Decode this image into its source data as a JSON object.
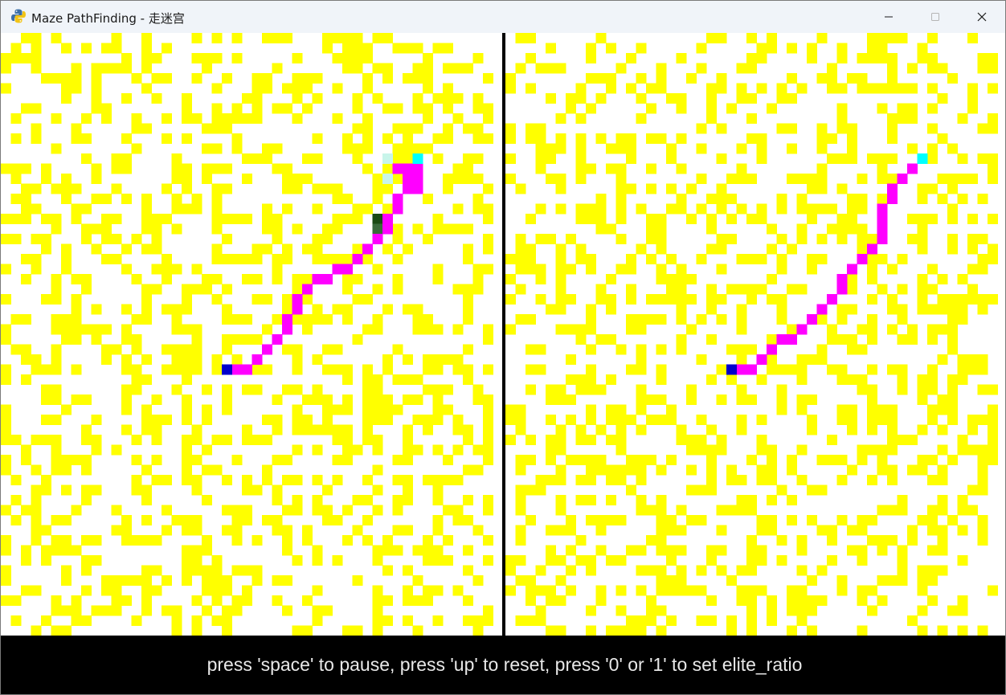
{
  "window": {
    "title": "Maze PathFinding - 走迷宫",
    "app_icon": "python-snake-icon",
    "controls": [
      "minimize-icon",
      "maximize-icon",
      "close-icon"
    ]
  },
  "colors": {
    "background": "#ffffff",
    "wall": "#ffff00",
    "path": "#ff00ff",
    "start": "#0000cc",
    "goal": "#00ffff",
    "explored_light": "#c8f5ea",
    "explored_dark_1": "#1a4a14",
    "explored_dark_2": "#3a6a3c",
    "divider": "#000000",
    "status_bg": "#000000",
    "status_text": "#e8e8e8"
  },
  "maze": {
    "grid_columns_per_panel": 49,
    "grid_rows": 60,
    "left_panel": {
      "start_cell": [
        22,
        33
      ],
      "goal_cell": [
        41,
        12
      ],
      "path_cells": [
        [
          23,
          33
        ],
        [
          24,
          33
        ],
        [
          25,
          32
        ],
        [
          26,
          31
        ],
        [
          27,
          30
        ],
        [
          28,
          29
        ],
        [
          28,
          28
        ],
        [
          29,
          27
        ],
        [
          29,
          26
        ],
        [
          30,
          25
        ],
        [
          31,
          24
        ],
        [
          32,
          24
        ],
        [
          33,
          23
        ],
        [
          34,
          23
        ],
        [
          35,
          22
        ],
        [
          36,
          21
        ],
        [
          37,
          20
        ],
        [
          38,
          19
        ],
        [
          38,
          18
        ],
        [
          39,
          17
        ],
        [
          39,
          16
        ],
        [
          40,
          15
        ],
        [
          40,
          14
        ],
        [
          40,
          13
        ],
        [
          41,
          13
        ],
        [
          41,
          14
        ],
        [
          41,
          15
        ],
        [
          39,
          13
        ]
      ],
      "explored_cells": [
        [
          37,
          18
        ],
        [
          37,
          19
        ],
        [
          38,
          12
        ],
        [
          38,
          14
        ]
      ]
    },
    "right_panel": {
      "start_cell": [
        22,
        33
      ],
      "goal_cell": [
        41,
        12
      ],
      "path_cells": [
        [
          23,
          33
        ],
        [
          24,
          33
        ],
        [
          25,
          32
        ],
        [
          26,
          31
        ],
        [
          27,
          30
        ],
        [
          28,
          30
        ],
        [
          29,
          29
        ],
        [
          30,
          28
        ],
        [
          31,
          27
        ],
        [
          32,
          26
        ],
        [
          33,
          25
        ],
        [
          33,
          24
        ],
        [
          34,
          23
        ],
        [
          35,
          22
        ],
        [
          36,
          21
        ],
        [
          37,
          20
        ],
        [
          37,
          19
        ],
        [
          37,
          18
        ],
        [
          37,
          17
        ],
        [
          38,
          16
        ],
        [
          38,
          15
        ],
        [
          39,
          14
        ],
        [
          40,
          13
        ]
      ]
    }
  },
  "status": {
    "text": "press 'space' to pause, press 'up' to reset, press '0' or '1' to set elite_ratio"
  }
}
